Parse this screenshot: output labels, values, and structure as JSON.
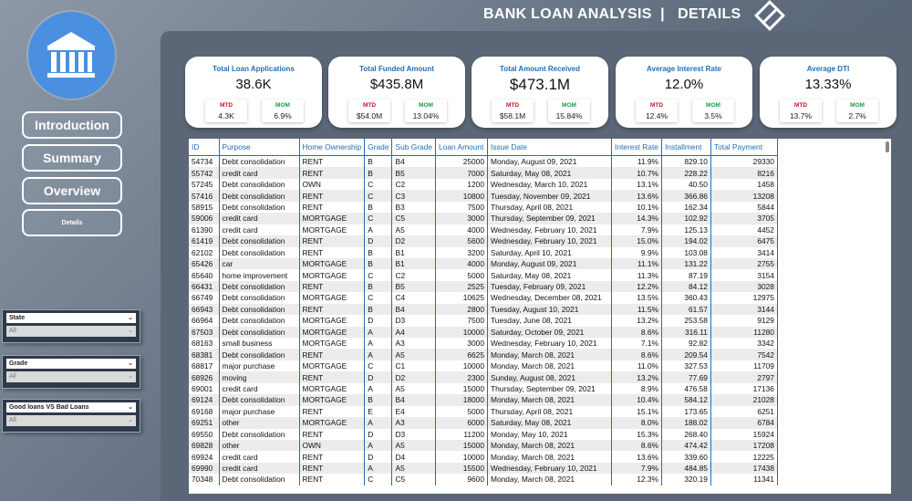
{
  "header": {
    "title": "BANK LOAN ANALYSIS  |   DETAILS"
  },
  "nav": {
    "introduction": "Introduction",
    "summary": "Summary",
    "overview": "Overview",
    "details": "Details"
  },
  "filters": {
    "state": {
      "label": "State",
      "value": "All"
    },
    "grade": {
      "label": "Grade",
      "value": "All"
    },
    "loan_type": {
      "label": "Good loans VS Bad Loans",
      "value": "All"
    }
  },
  "kpis": [
    {
      "label": "Total Loan Applications",
      "value": "38.6K",
      "mtd_label": "MTD",
      "mtd": "4.3K",
      "mom_label": "MOM",
      "mom": "6.9%"
    },
    {
      "label": "Total Funded Amount",
      "value": "$435.8M",
      "mtd_label": "MTD",
      "mtd": "$54.0M",
      "mom_label": "MOM",
      "mom": "13.04%"
    },
    {
      "label": "Total Amount Received",
      "value": "$473.1M",
      "mtd_label": "MTD",
      "mtd": "$58.1M",
      "mom_label": "MOM",
      "mom": "15.84%"
    },
    {
      "label": "Average Interest Rate",
      "value": "12.0%",
      "mtd_label": "MTD",
      "mtd": "12.4%",
      "mom_label": "MOM",
      "mom": "3.5%"
    },
    {
      "label": "Average DTI",
      "value": "13.33%",
      "mtd_label": "MTD",
      "mtd": "13.7%",
      "mom_label": "MOM",
      "mom": "2.7%"
    }
  ],
  "table": {
    "columns": [
      "ID",
      "Purpose",
      "Home Ownership",
      "Grade",
      "Sub Grade",
      "Loan Amount",
      "Issue Date",
      "Interest Rate",
      "Installment",
      "Total Payment"
    ],
    "rows": [
      [
        "54734",
        "Debt consolidation",
        "RENT",
        "B",
        "B4",
        "25000",
        "Monday, August 09, 2021",
        "11.9%",
        "829.10",
        "29330"
      ],
      [
        "55742",
        "credit card",
        "RENT",
        "B",
        "B5",
        "7000",
        "Saturday, May 08, 2021",
        "10.7%",
        "228.22",
        "8216"
      ],
      [
        "57245",
        "Debt consolidation",
        "OWN",
        "C",
        "C2",
        "1200",
        "Wednesday, March 10, 2021",
        "13.1%",
        "40.50",
        "1458"
      ],
      [
        "57416",
        "Debt consolidation",
        "RENT",
        "C",
        "C3",
        "10800",
        "Tuesday, November 09, 2021",
        "13.6%",
        "366.86",
        "13208"
      ],
      [
        "58915",
        "Debt consolidation",
        "RENT",
        "B",
        "B3",
        "7500",
        "Thursday, April 08, 2021",
        "10.1%",
        "162.34",
        "5844"
      ],
      [
        "59006",
        "credit card",
        "MORTGAGE",
        "C",
        "C5",
        "3000",
        "Thursday, September 09, 2021",
        "14.3%",
        "102.92",
        "3705"
      ],
      [
        "61390",
        "credit card",
        "MORTGAGE",
        "A",
        "A5",
        "4000",
        "Wednesday, February 10, 2021",
        "7.9%",
        "125.13",
        "4452"
      ],
      [
        "61419",
        "Debt consolidation",
        "RENT",
        "D",
        "D2",
        "5600",
        "Wednesday, February 10, 2021",
        "15.0%",
        "194.02",
        "6475"
      ],
      [
        "62102",
        "Debt consolidation",
        "RENT",
        "B",
        "B1",
        "3200",
        "Saturday, April 10, 2021",
        "9.9%",
        "103.08",
        "3414"
      ],
      [
        "65426",
        "car",
        "MORTGAGE",
        "B",
        "B1",
        "4000",
        "Monday, August 09, 2021",
        "11.1%",
        "131.22",
        "2755"
      ],
      [
        "65640",
        "home improvement",
        "MORTGAGE",
        "C",
        "C2",
        "5000",
        "Saturday, May 08, 2021",
        "11.3%",
        "87.19",
        "3154"
      ],
      [
        "66431",
        "Debt consolidation",
        "RENT",
        "B",
        "B5",
        "2525",
        "Tuesday, February 09, 2021",
        "12.2%",
        "84.12",
        "3028"
      ],
      [
        "66749",
        "Debt consolidation",
        "MORTGAGE",
        "C",
        "C4",
        "10625",
        "Wednesday, December 08, 2021",
        "13.5%",
        "360.43",
        "12975"
      ],
      [
        "66943",
        "Debt consolidation",
        "RENT",
        "B",
        "B4",
        "2800",
        "Tuesday, August 10, 2021",
        "11.5%",
        "61.57",
        "3144"
      ],
      [
        "66964",
        "Debt consolidation",
        "MORTGAGE",
        "D",
        "D3",
        "7500",
        "Tuesday, June 08, 2021",
        "13.2%",
        "253.58",
        "9129"
      ],
      [
        "67503",
        "Debt consolidation",
        "MORTGAGE",
        "A",
        "A4",
        "10000",
        "Saturday, October 09, 2021",
        "8.6%",
        "316.11",
        "11280"
      ],
      [
        "68163",
        "small business",
        "MORTGAGE",
        "A",
        "A3",
        "3000",
        "Wednesday, February 10, 2021",
        "7.1%",
        "92.82",
        "3342"
      ],
      [
        "68381",
        "Debt consolidation",
        "RENT",
        "A",
        "A5",
        "6625",
        "Monday, March 08, 2021",
        "8.6%",
        "209.54",
        "7542"
      ],
      [
        "68817",
        "major purchase",
        "MORTGAGE",
        "C",
        "C1",
        "10000",
        "Monday, March 08, 2021",
        "11.0%",
        "327.53",
        "11709"
      ],
      [
        "68926",
        "moving",
        "RENT",
        "D",
        "D2",
        "2300",
        "Sunday, August 08, 2021",
        "13.2%",
        "77.69",
        "2797"
      ],
      [
        "69001",
        "credit card",
        "MORTGAGE",
        "A",
        "A5",
        "15000",
        "Thursday, September 09, 2021",
        "8.9%",
        "476.58",
        "17136"
      ],
      [
        "69124",
        "Debt consolidation",
        "MORTGAGE",
        "B",
        "B4",
        "18000",
        "Monday, March 08, 2021",
        "10.4%",
        "584.12",
        "21028"
      ],
      [
        "69168",
        "major purchase",
        "RENT",
        "E",
        "E4",
        "5000",
        "Thursday, April 08, 2021",
        "15.1%",
        "173.65",
        "6251"
      ],
      [
        "69251",
        "other",
        "MORTGAGE",
        "A",
        "A3",
        "6000",
        "Saturday, May 08, 2021",
        "8.0%",
        "188.02",
        "6784"
      ],
      [
        "69550",
        "Debt consolidation",
        "RENT",
        "D",
        "D3",
        "11200",
        "Monday, May 10, 2021",
        "15.3%",
        "268.40",
        "15924"
      ],
      [
        "69828",
        "other",
        "OWN",
        "A",
        "A5",
        "15000",
        "Monday, March 08, 2021",
        "8.6%",
        "474.42",
        "17208"
      ],
      [
        "69924",
        "credit card",
        "RENT",
        "D",
        "D4",
        "10000",
        "Monday, March 08, 2021",
        "13.6%",
        "339.60",
        "12225"
      ],
      [
        "69990",
        "credit card",
        "RENT",
        "A",
        "A5",
        "15500",
        "Wednesday, February 10, 2021",
        "7.9%",
        "484.85",
        "17438"
      ],
      [
        "70348",
        "Debt consolidation",
        "RENT",
        "C",
        "C5",
        "9600",
        "Monday, March 08, 2021",
        "12.3%",
        "320.19",
        "11341"
      ]
    ]
  },
  "icons": {
    "logo": "bank-building-icon",
    "view_toggle": "diamond-icon"
  },
  "colors": {
    "accent": "#1f6fb5",
    "mtd": "#c0161d",
    "mom": "#1d9b3a",
    "logo_bg": "#4a8fe0"
  }
}
